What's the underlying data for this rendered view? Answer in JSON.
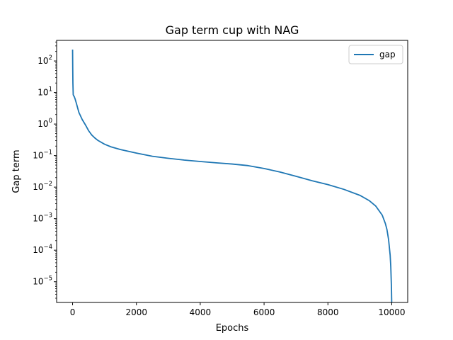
{
  "chart_data": {
    "type": "line",
    "title": "Gap term cup with NAG",
    "xlabel": "Epochs",
    "ylabel": "Gap term",
    "yscale": "log",
    "xlim": [
      -500,
      10500
    ],
    "ylim": [
      2.2e-06,
      450
    ],
    "x_ticks": [
      0,
      2000,
      4000,
      6000,
      8000,
      10000
    ],
    "x_tick_labels": [
      "0",
      "2000",
      "4000",
      "6000",
      "8000",
      "10000"
    ],
    "y_ticks": [
      {
        "value": 1e-05,
        "base": "10",
        "exp": "−5"
      },
      {
        "value": 0.0001,
        "base": "10",
        "exp": "−4"
      },
      {
        "value": 0.001,
        "base": "10",
        "exp": "−3"
      },
      {
        "value": 0.01,
        "base": "10",
        "exp": "−2"
      },
      {
        "value": 0.1,
        "base": "10",
        "exp": "−1"
      },
      {
        "value": 1,
        "base": "10",
        "exp": "0"
      },
      {
        "value": 10,
        "base": "10",
        "exp": "1"
      },
      {
        "value": 100,
        "base": "10",
        "exp": "2"
      }
    ],
    "grid": false,
    "legend_position": "top-right",
    "series": [
      {
        "name": "gap",
        "color": "#1f77b4",
        "x": [
          0,
          5,
          10,
          20,
          30,
          50,
          80,
          120,
          160,
          200,
          250,
          300,
          400,
          500,
          600,
          700,
          800,
          1000,
          1200,
          1500,
          2000,
          2500,
          3000,
          3500,
          4000,
          4500,
          5000,
          5500,
          6000,
          6500,
          7000,
          7500,
          8000,
          8500,
          9000,
          9300,
          9500,
          9700,
          9800,
          9850,
          9900,
          9950,
          9970,
          9985,
          9993,
          9998,
          10000
        ],
        "y": [
          230,
          60,
          20,
          8.5,
          8,
          7.5,
          6.2,
          4.5,
          3.2,
          2.3,
          1.8,
          1.4,
          0.95,
          0.62,
          0.45,
          0.36,
          0.3,
          0.23,
          0.19,
          0.155,
          0.12,
          0.095,
          0.082,
          0.072,
          0.065,
          0.059,
          0.054,
          0.048,
          0.039,
          0.03,
          0.022,
          0.016,
          0.012,
          0.0085,
          0.0055,
          0.0037,
          0.0025,
          0.0013,
          0.0007,
          0.00045,
          0.00022,
          7e-05,
          3e-05,
          1e-05,
          5e-06,
          2.5e-06,
          1.5e-06
        ]
      }
    ]
  }
}
